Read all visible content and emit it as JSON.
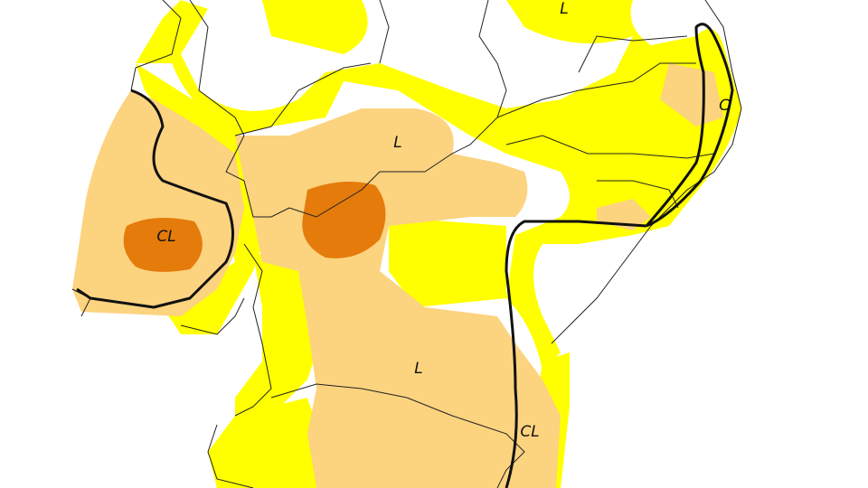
{
  "map": {
    "labels": [
      "L",
      "C",
      "L",
      "CL",
      "L",
      "CL"
    ]
  }
}
